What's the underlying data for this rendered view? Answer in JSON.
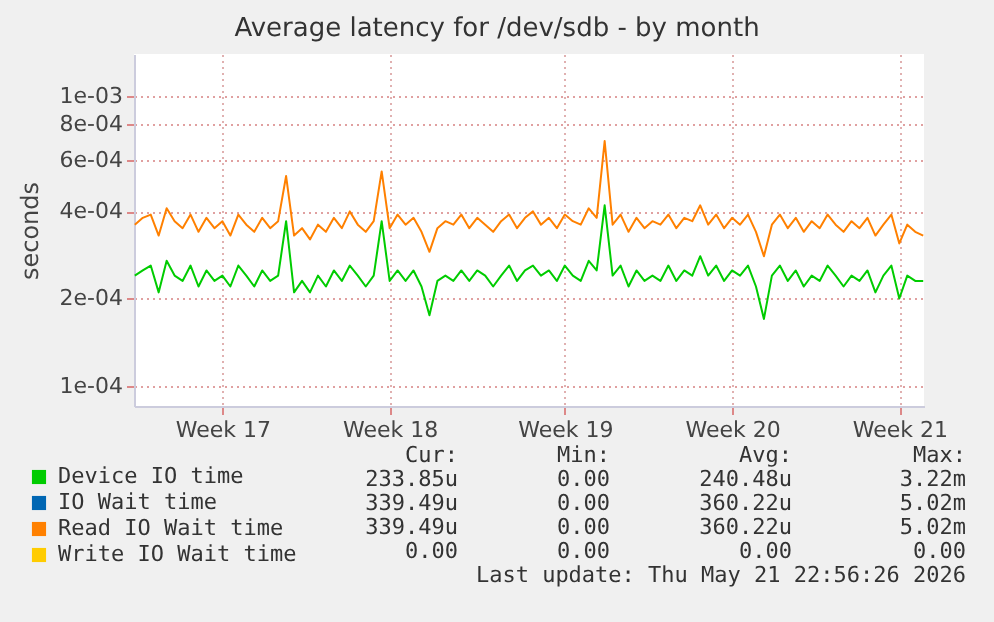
{
  "chart_data": {
    "type": "line",
    "title": "Average latency for /dev/sdb - by month",
    "ylabel": "seconds",
    "log": "y",
    "grid": true,
    "legend": "bottom",
    "line_style": "solid",
    "categories": [
      null,
      null,
      null,
      null,
      null,
      null,
      null,
      null,
      null,
      null,
      null,
      "Week 17",
      null,
      null,
      null,
      null,
      null,
      null,
      null,
      null,
      null,
      null,
      null,
      null,
      null,
      null,
      null,
      null,
      null,
      null,
      null,
      null,
      "Week 18",
      null,
      null,
      null,
      null,
      null,
      null,
      null,
      null,
      null,
      null,
      null,
      null,
      null,
      null,
      null,
      null,
      null,
      null,
      null,
      null,
      null,
      "Week 19",
      null,
      null,
      null,
      null,
      null,
      null,
      null,
      null,
      null,
      null,
      null,
      null,
      null,
      null,
      null,
      null,
      null,
      null,
      null,
      null,
      "Week 20",
      null,
      null,
      null,
      null,
      null,
      null,
      null,
      null,
      null,
      null,
      null,
      null,
      null,
      null,
      null,
      null,
      null,
      null,
      null,
      null,
      "Week 21",
      null,
      null,
      null
    ],
    "ylim": [
      8.5e-05,
      0.0014
    ],
    "yticks": [
      {
        "value": 0.0001,
        "label": "1e-04"
      },
      {
        "value": 0.0002,
        "label": "2e-04"
      },
      {
        "value": 0.0004,
        "label": "4e-04"
      },
      {
        "value": 0.0006,
        "label": "6e-04"
      },
      {
        "value": 0.0008,
        "label": "8e-04"
      },
      {
        "value": 0.001,
        "label": "1e-03"
      }
    ],
    "series": [
      {
        "name": "Device IO time",
        "color": "#00cc00",
        "values": [
          0.00024,
          0.00025,
          0.00026,
          0.00021,
          0.00027,
          0.00024,
          0.00023,
          0.00026,
          0.00022,
          0.00025,
          0.00023,
          0.00024,
          0.00022,
          0.00026,
          0.00024,
          0.00022,
          0.00025,
          0.00023,
          0.00024,
          0.00037,
          0.00021,
          0.00023,
          0.00021,
          0.00024,
          0.00022,
          0.00025,
          0.00023,
          0.00026,
          0.00024,
          0.00022,
          0.00024,
          0.00037,
          0.00023,
          0.00025,
          0.00023,
          0.00025,
          0.00022,
          0.000175,
          0.00023,
          0.00024,
          0.00023,
          0.00025,
          0.00023,
          0.00025,
          0.00024,
          0.00022,
          0.00024,
          0.00026,
          0.00023,
          0.00025,
          0.00026,
          0.00024,
          0.00025,
          0.00023,
          0.00026,
          0.00024,
          0.00023,
          0.00027,
          0.00025,
          0.00042,
          0.00024,
          0.00026,
          0.00022,
          0.00025,
          0.00023,
          0.00024,
          0.00023,
          0.00026,
          0.00023,
          0.00025,
          0.00024,
          0.00028,
          0.00024,
          0.00026,
          0.00023,
          0.00025,
          0.00024,
          0.00026,
          0.00022,
          0.00017,
          0.00024,
          0.00026,
          0.00023,
          0.00025,
          0.00022,
          0.00024,
          0.00023,
          0.00026,
          0.00024,
          0.00022,
          0.00024,
          0.00023,
          0.00025,
          0.00021,
          0.00024,
          0.00026,
          0.0002,
          0.00024,
          0.00023,
          0.00023
        ]
      },
      {
        "name": "IO Wait time",
        "color": "#0066b3",
        "values": [
          null,
          null,
          null,
          null,
          null,
          null,
          null,
          null,
          null,
          null,
          null,
          null,
          null,
          null,
          null,
          null,
          null,
          null,
          null,
          null,
          null,
          null,
          null,
          null,
          null,
          null,
          null,
          null,
          null,
          null,
          null,
          null,
          null,
          null,
          null,
          null,
          null,
          null,
          null,
          null,
          null,
          null,
          null,
          null,
          null,
          null,
          null,
          null,
          null,
          null,
          null,
          null,
          null,
          null,
          null,
          null,
          null,
          null,
          null,
          null,
          null,
          null,
          null,
          null,
          null,
          null,
          null,
          null,
          null,
          null,
          null,
          null,
          null,
          null,
          null,
          null,
          null,
          null,
          null,
          null,
          null,
          null,
          null,
          null,
          null,
          null,
          null,
          null,
          null,
          null,
          null,
          null,
          null,
          null,
          null,
          null,
          null,
          null,
          null,
          null
        ]
      },
      {
        "name": "Read IO Wait time",
        "color": "#ff8000",
        "values": [
          0.00036,
          0.00038,
          0.00039,
          0.00033,
          0.00041,
          0.00037,
          0.00035,
          0.00039,
          0.00034,
          0.00038,
          0.00035,
          0.00037,
          0.00033,
          0.00039,
          0.00036,
          0.00034,
          0.00038,
          0.00035,
          0.00037,
          0.00053,
          0.00033,
          0.00035,
          0.00032,
          0.00036,
          0.00034,
          0.00038,
          0.00035,
          0.0004,
          0.00036,
          0.00034,
          0.00037,
          0.00055,
          0.00035,
          0.00039,
          0.00036,
          0.00038,
          0.00034,
          0.00029,
          0.00035,
          0.00037,
          0.00036,
          0.00039,
          0.00035,
          0.00038,
          0.00036,
          0.00034,
          0.00037,
          0.00039,
          0.00035,
          0.00038,
          0.0004,
          0.00036,
          0.00038,
          0.00035,
          0.00039,
          0.00037,
          0.00036,
          0.00041,
          0.00038,
          0.0007,
          0.00036,
          0.00039,
          0.00034,
          0.00038,
          0.00035,
          0.00037,
          0.00036,
          0.00039,
          0.00035,
          0.00038,
          0.00037,
          0.00042,
          0.00036,
          0.00039,
          0.00035,
          0.00038,
          0.00036,
          0.00039,
          0.00034,
          0.00028,
          0.00036,
          0.00039,
          0.00035,
          0.00038,
          0.00034,
          0.00037,
          0.00035,
          0.00039,
          0.00036,
          0.00034,
          0.00037,
          0.00035,
          0.00038,
          0.00033,
          0.00036,
          0.00039,
          0.00031,
          0.00036,
          0.00034,
          0.00033
        ]
      },
      {
        "name": "Write IO Wait time",
        "color": "#ffcc00",
        "values": [
          null,
          null,
          null,
          null,
          null,
          null,
          null,
          null,
          null,
          null,
          null,
          null,
          null,
          null,
          null,
          null,
          null,
          null,
          null,
          null,
          null,
          null,
          null,
          null,
          null,
          null,
          null,
          null,
          null,
          null,
          null,
          null,
          null,
          null,
          null,
          null,
          null,
          null,
          null,
          null,
          null,
          null,
          null,
          null,
          null,
          null,
          null,
          null,
          null,
          null,
          null,
          null,
          null,
          null,
          null,
          null,
          null,
          null,
          null,
          null,
          null,
          null,
          null,
          null,
          null,
          null,
          null,
          null,
          null,
          null,
          null,
          null,
          null,
          null,
          null,
          null,
          null,
          null,
          null,
          null,
          null,
          null,
          null,
          null,
          null,
          null,
          null,
          null,
          null,
          null,
          null,
          null,
          null,
          null,
          null,
          null,
          null,
          null,
          null,
          null
        ]
      }
    ],
    "annotations": [
      "Cur:",
      "Min:",
      "Avg:",
      "Max:",
      "233.85u",
      "0.00",
      "240.48u",
      "3.22m",
      "339.49u",
      "0.00",
      "360.22u",
      "5.02m",
      "339.49u",
      "0.00",
      "360.22u",
      "5.02m",
      "0.00",
      "0.00",
      "0.00",
      "0.00",
      "Last update: Thu May 21 22:56:26 2026"
    ]
  }
}
